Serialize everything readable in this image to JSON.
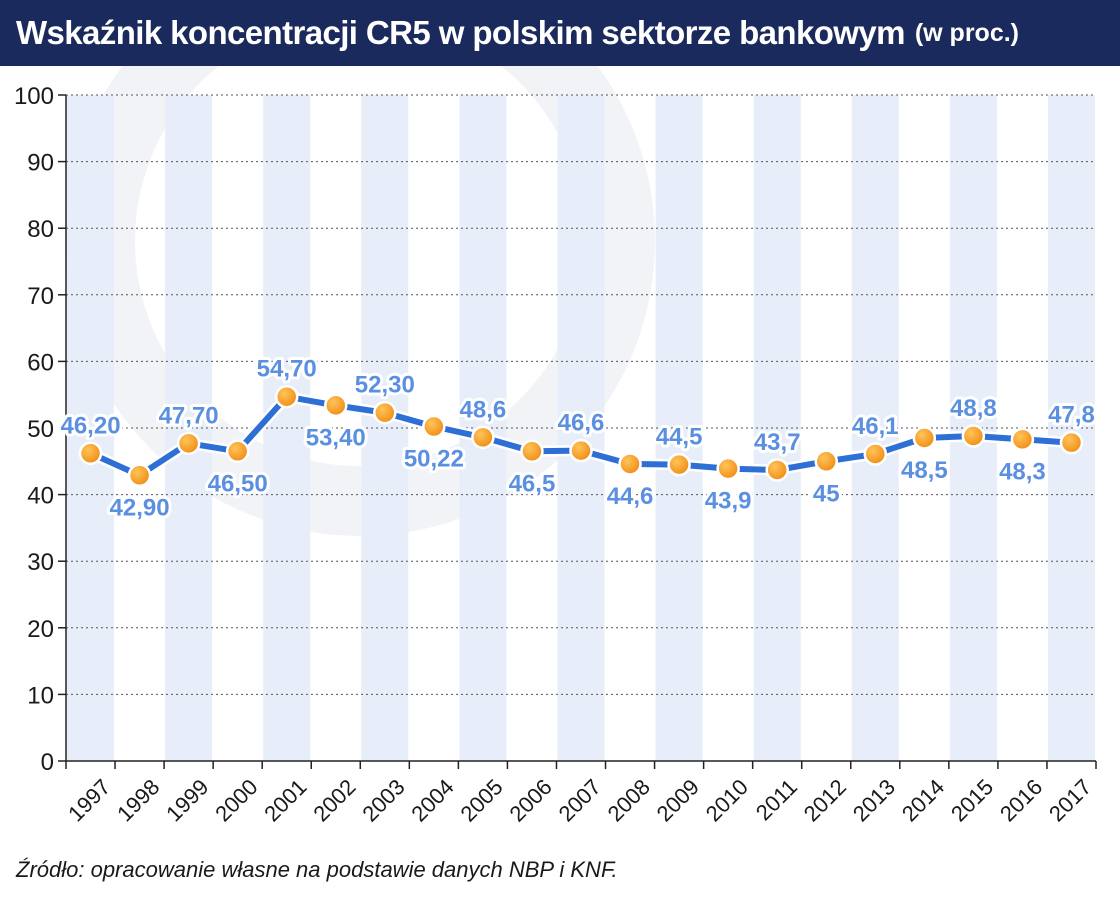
{
  "header": {
    "title": "Wskaźnik koncentracji CR5 w polskim sektorze bankowym",
    "subtitle": "(w proc.)"
  },
  "footer": {
    "source": "Źródło: opracowanie własne na podstawie danych NBP i KNF."
  },
  "colors": {
    "title_bg": "#1b2a5c",
    "line": "#2e6fd6",
    "marker": "#f39a1e",
    "label_fill": "#5b8fe0",
    "stripe": "#e8eef9"
  },
  "chart_data": {
    "type": "line",
    "title": "Wskaźnik koncentracji CR5 w polskim sektorze bankowym",
    "subtitle": "(w proc.)",
    "xlabel": "",
    "ylabel": "",
    "ylim": [
      0,
      100
    ],
    "yticks": [
      "0",
      "10",
      "20",
      "30",
      "40",
      "50",
      "60",
      "70",
      "80",
      "90",
      "100"
    ],
    "grid": true,
    "legend": "none",
    "categories": [
      "1997",
      "1998",
      "1999",
      "2000",
      "2001",
      "2002",
      "2003",
      "2004",
      "2005",
      "2006",
      "2007",
      "2008",
      "2009",
      "2010",
      "2011",
      "2012",
      "2013",
      "2014",
      "2015",
      "2016",
      "2017"
    ],
    "values": [
      46.2,
      42.9,
      47.7,
      46.5,
      54.7,
      53.4,
      52.3,
      50.22,
      48.6,
      46.5,
      46.6,
      44.6,
      44.5,
      43.9,
      43.7,
      45,
      46.1,
      48.5,
      48.8,
      48.3,
      47.8
    ],
    "data_labels": [
      "46,20",
      "42,90",
      "47,70",
      "46,50",
      "54,70",
      "53,40",
      "52,30",
      "50,22",
      "48,6",
      "46,5",
      "46,6",
      "44,6",
      "44,5",
      "43,9",
      "43,7",
      "45",
      "46,1",
      "48,5",
      "48,8",
      "48,3",
      "47,8"
    ],
    "label_positions": [
      "above",
      "below",
      "above",
      "below",
      "above",
      "below",
      "above",
      "below",
      "above",
      "below",
      "above",
      "below",
      "above",
      "below",
      "above",
      "below",
      "above",
      "below",
      "above",
      "below",
      "above"
    ]
  }
}
